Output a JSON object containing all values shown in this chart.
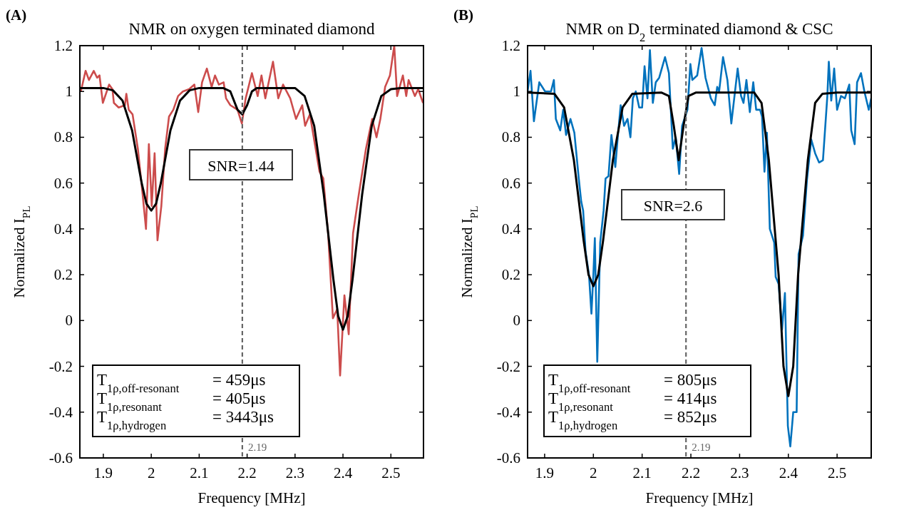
{
  "chart_data": [
    {
      "type": "line",
      "title": "NMR on oxygen terminated diamond",
      "xlabel": "Frequency [MHz]",
      "ylabel": "Normalized I$_{PL}$",
      "xlim": [
        1.851,
        2.568
      ],
      "ylim": [
        -0.6,
        1.2
      ],
      "xticks": [
        1.9,
        2,
        2.1,
        2.2,
        2.3,
        2.4,
        2.5
      ],
      "yticks": [
        -0.6,
        -0.4,
        -0.2,
        0,
        0.2,
        0.4,
        0.6,
        0.8,
        1,
        1.2
      ],
      "line_style": "solid",
      "annotations": [
        "(A)",
        "SNR=1.44",
        "T$_{1ρ,off-resonant}$ = 459μs",
        "T$_{1ρ,resonant}$ = 405μs",
        "T$_{1ρ,hydrogen}$ = 3443μs"
      ],
      "ref_lines": [
        {
          "axis": "x",
          "value": 2.19,
          "label": "2.19",
          "color": "#666666",
          "line_style": "dashed"
        }
      ],
      "series": [
        {
          "color": "#cc4c4c",
          "x": [
            1.853,
            1.863,
            1.87,
            1.88,
            1.887,
            1.892,
            1.899,
            1.912,
            1.919,
            1.922,
            1.932,
            1.945,
            1.948,
            1.953,
            1.961,
            1.972,
            1.982,
            1.989,
            1.995,
            2.001,
            2.007,
            2.013,
            2.021,
            2.029,
            2.037,
            2.046,
            2.056,
            2.066,
            2.079,
            2.09,
            2.098,
            2.106,
            2.116,
            2.126,
            2.133,
            2.141,
            2.151,
            2.156,
            2.165,
            2.18,
            2.189,
            2.197,
            2.21,
            2.222,
            2.23,
            2.238,
            2.254,
            2.265,
            2.275,
            2.29,
            2.302,
            2.315,
            2.321,
            2.331,
            2.339,
            2.351,
            2.359,
            2.369,
            2.379,
            2.388,
            2.394,
            2.403,
            2.412,
            2.421,
            2.433,
            2.448,
            2.461,
            2.47,
            2.478,
            2.488,
            2.498,
            2.507,
            2.513,
            2.525,
            2.532,
            2.537,
            2.55,
            2.557,
            2.567
          ],
          "values": [
            1.0,
            1.09,
            1.05,
            1.09,
            1.06,
            1.07,
            0.95,
            1.03,
            1.01,
            0.95,
            0.93,
            0.94,
            0.99,
            0.92,
            0.9,
            0.75,
            0.55,
            0.4,
            0.77,
            0.5,
            0.73,
            0.35,
            0.5,
            0.75,
            0.89,
            0.92,
            0.98,
            1.0,
            1.01,
            1.03,
            0.91,
            1.04,
            1.1,
            1.02,
            1.07,
            1.03,
            1.04,
            0.97,
            0.94,
            0.92,
            0.86,
            0.97,
            1.08,
            0.98,
            1.07,
            0.97,
            1.13,
            0.97,
            1.03,
            0.97,
            0.88,
            0.94,
            0.85,
            0.9,
            0.8,
            0.65,
            0.62,
            0.38,
            0.01,
            0.05,
            -0.24,
            0.11,
            -0.06,
            0.38,
            0.55,
            0.75,
            0.88,
            0.8,
            0.88,
            1.02,
            1.07,
            1.2,
            0.98,
            1.07,
            0.98,
            1.05,
            0.98,
            1.01,
            0.95
          ]
        },
        {
          "color": "#000000",
          "x": [
            1.851,
            1.9,
            1.92,
            1.94,
            1.96,
            1.98,
            1.99,
            2.0,
            2.01,
            2.02,
            2.04,
            2.06,
            2.08,
            2.1,
            2.15,
            2.165,
            2.18,
            2.19,
            2.2,
            2.21,
            2.22,
            2.3,
            2.32,
            2.34,
            2.36,
            2.38,
            2.39,
            2.4,
            2.41,
            2.42,
            2.44,
            2.46,
            2.48,
            2.5,
            2.52,
            2.568
          ],
          "values": [
            1.015,
            1.015,
            1.005,
            0.96,
            0.83,
            0.6,
            0.51,
            0.48,
            0.51,
            0.6,
            0.83,
            0.96,
            1.005,
            1.015,
            1.015,
            1.0,
            0.92,
            0.9,
            0.94,
            1.0,
            1.015,
            1.015,
            0.98,
            0.85,
            0.55,
            0.18,
            0.02,
            -0.04,
            0.02,
            0.18,
            0.55,
            0.85,
            0.98,
            1.01,
            1.015,
            1.015
          ]
        }
      ]
    },
    {
      "type": "line",
      "title": "NMR on D$_{2}$ terminated diamond & CSC",
      "xlabel": "Frequency [MHz]",
      "ylabel": "Normalized I$_{PL}$",
      "xlim": [
        1.865,
        2.57
      ],
      "ylim": [
        -0.6,
        1.2
      ],
      "xticks": [
        1.9,
        2,
        2.1,
        2.2,
        2.3,
        2.4,
        2.5
      ],
      "yticks": [
        -0.6,
        -0.4,
        -0.2,
        0,
        0.2,
        0.4,
        0.6,
        0.8,
        1,
        1.2
      ],
      "line_style": "solid",
      "annotations": [
        "(B)",
        "SNR=2.6",
        "T$_{1ρ,off-resonant}$ = 805μs",
        "T$_{1ρ,resonant}$ = 414μs",
        "T$_{1ρ,hydrogen}$ = 852μs"
      ],
      "ref_lines": [
        {
          "axis": "x",
          "value": 2.19,
          "label": "2.19",
          "color": "#666666",
          "line_style": "dashed"
        }
      ],
      "series": [
        {
          "color": "#0072bd",
          "x": [
            1.865,
            1.871,
            1.878,
            1.889,
            1.901,
            1.913,
            1.919,
            1.923,
            1.932,
            1.938,
            1.944,
            1.953,
            1.961,
            1.97,
            1.975,
            1.979,
            1.984,
            1.991,
            1.996,
            2.0,
            2.003,
            2.008,
            2.014,
            2.021,
            2.025,
            2.031,
            2.037,
            2.045,
            2.05,
            2.056,
            2.063,
            2.07,
            2.076,
            2.081,
            2.087,
            2.094,
            2.1,
            2.105,
            2.111,
            2.116,
            2.122,
            2.128,
            2.135,
            2.147,
            2.155,
            2.163,
            2.169,
            2.176,
            2.182,
            2.193,
            2.199,
            2.203,
            2.213,
            2.222,
            2.23,
            2.241,
            2.249,
            2.254,
            2.258,
            2.266,
            2.275,
            2.283,
            2.296,
            2.303,
            2.308,
            2.314,
            2.321,
            2.328,
            2.334,
            2.342,
            2.346,
            2.351,
            2.356,
            2.362,
            2.371,
            2.374,
            2.38,
            2.387,
            2.393,
            2.399,
            2.404,
            2.41,
            2.417,
            2.421,
            2.43,
            2.438,
            2.447,
            2.455,
            2.463,
            2.471,
            2.48,
            2.483,
            2.488,
            2.494,
            2.5,
            2.508,
            2.516,
            2.525,
            2.529,
            2.536,
            2.541,
            2.549,
            2.556,
            2.565,
            2.57
          ],
          "values": [
            1.0,
            1.09,
            0.87,
            1.04,
            1.0,
            1.0,
            1.05,
            0.88,
            0.83,
            0.92,
            0.81,
            0.88,
            0.82,
            0.62,
            0.52,
            0.48,
            0.3,
            0.2,
            0.03,
            0.2,
            0.36,
            -0.18,
            0.34,
            0.48,
            0.62,
            0.63,
            0.81,
            0.67,
            0.8,
            0.94,
            0.85,
            0.88,
            0.8,
            0.97,
            1.0,
            0.93,
            0.93,
            1.11,
            0.97,
            1.18,
            0.95,
            1.04,
            1.06,
            1.15,
            1.08,
            0.75,
            0.8,
            0.64,
            0.85,
            0.92,
            1.12,
            1.05,
            1.07,
            1.19,
            1.06,
            0.97,
            0.94,
            1.02,
            1.0,
            1.15,
            1.05,
            0.86,
            1.1,
            0.98,
            0.95,
            1.05,
            0.91,
            1.04,
            0.92,
            0.92,
            0.89,
            0.65,
            0.82,
            0.4,
            0.34,
            0.19,
            0.16,
            -0.04,
            0.12,
            -0.46,
            -0.55,
            -0.4,
            -0.4,
            0.29,
            0.37,
            0.61,
            0.79,
            0.73,
            0.69,
            0.7,
            0.98,
            1.13,
            0.96,
            1.1,
            0.92,
            0.98,
            0.97,
            1.03,
            0.83,
            0.77,
            1.04,
            1.08,
            1.0,
            0.92,
            0.97
          ]
        },
        {
          "color": "#000000",
          "x": [
            1.865,
            1.92,
            1.94,
            1.96,
            1.98,
            1.99,
            2.0,
            2.01,
            2.02,
            2.04,
            2.06,
            2.08,
            2.14,
            2.155,
            2.165,
            2.175,
            2.185,
            2.195,
            2.21,
            2.33,
            2.345,
            2.36,
            2.38,
            2.39,
            2.4,
            2.41,
            2.42,
            2.44,
            2.455,
            2.47,
            2.5,
            2.57
          ],
          "values": [
            0.995,
            0.99,
            0.93,
            0.7,
            0.35,
            0.2,
            0.15,
            0.2,
            0.35,
            0.7,
            0.93,
            0.99,
            0.995,
            0.98,
            0.85,
            0.7,
            0.85,
            0.98,
            0.995,
            0.995,
            0.95,
            0.7,
            0.2,
            -0.2,
            -0.33,
            -0.2,
            0.2,
            0.7,
            0.95,
            0.99,
            0.995,
            0.995
          ]
        }
      ]
    }
  ]
}
